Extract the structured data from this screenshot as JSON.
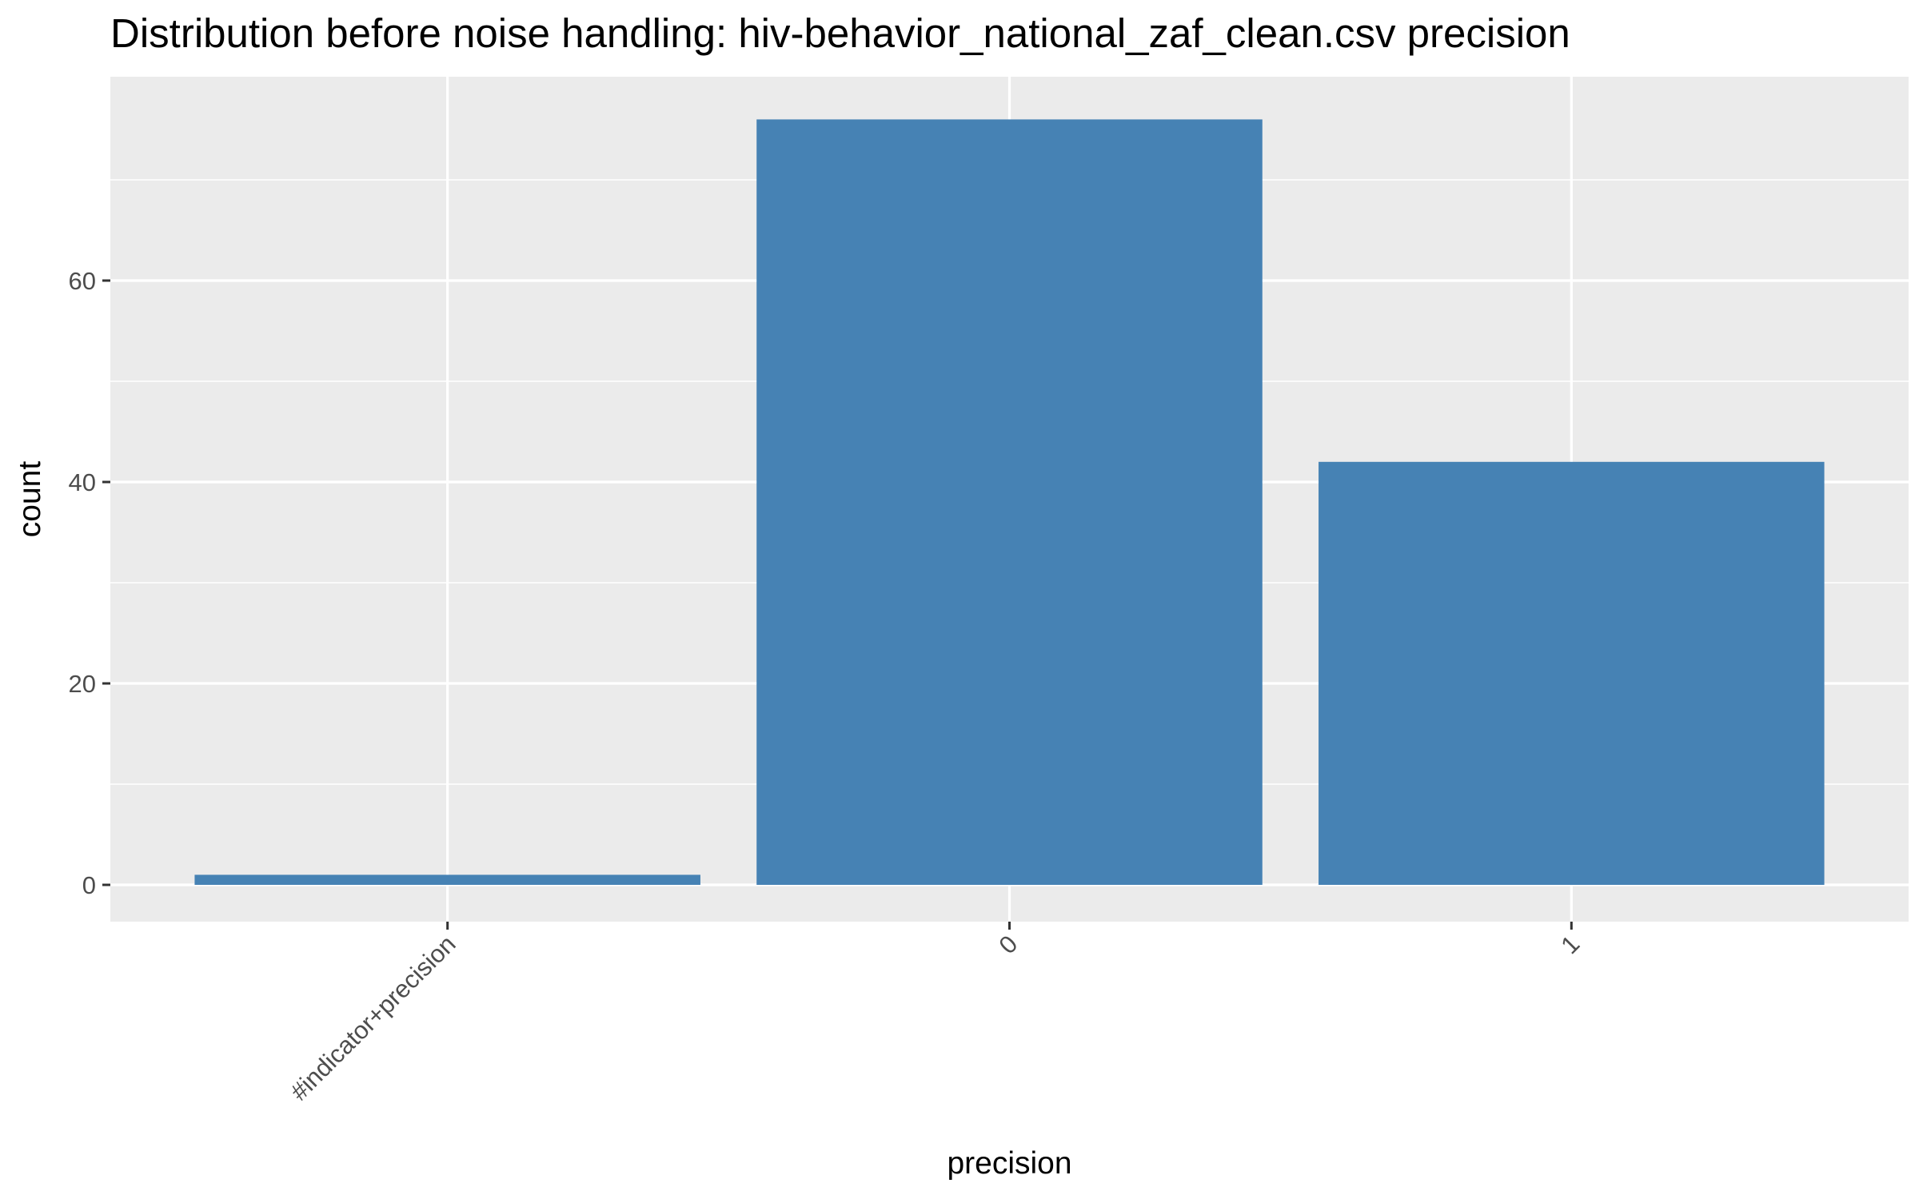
{
  "chart_data": {
    "type": "bar",
    "title": "Distribution before noise handling: hiv-behavior_national_zaf_clean.csv precision",
    "xlabel": "precision",
    "ylabel": "count",
    "categories": [
      "#indicator+precision",
      "0",
      "1"
    ],
    "values": [
      1,
      76,
      42
    ],
    "ylim": [
      0,
      80
    ],
    "yticks": [
      0,
      20,
      40,
      60
    ],
    "grid": true,
    "legend": "none",
    "colors": {
      "bar": "#4682B4",
      "panel": "#EBEBEB",
      "gridline": "#FFFFFF",
      "tick_mark": "#333333"
    }
  }
}
